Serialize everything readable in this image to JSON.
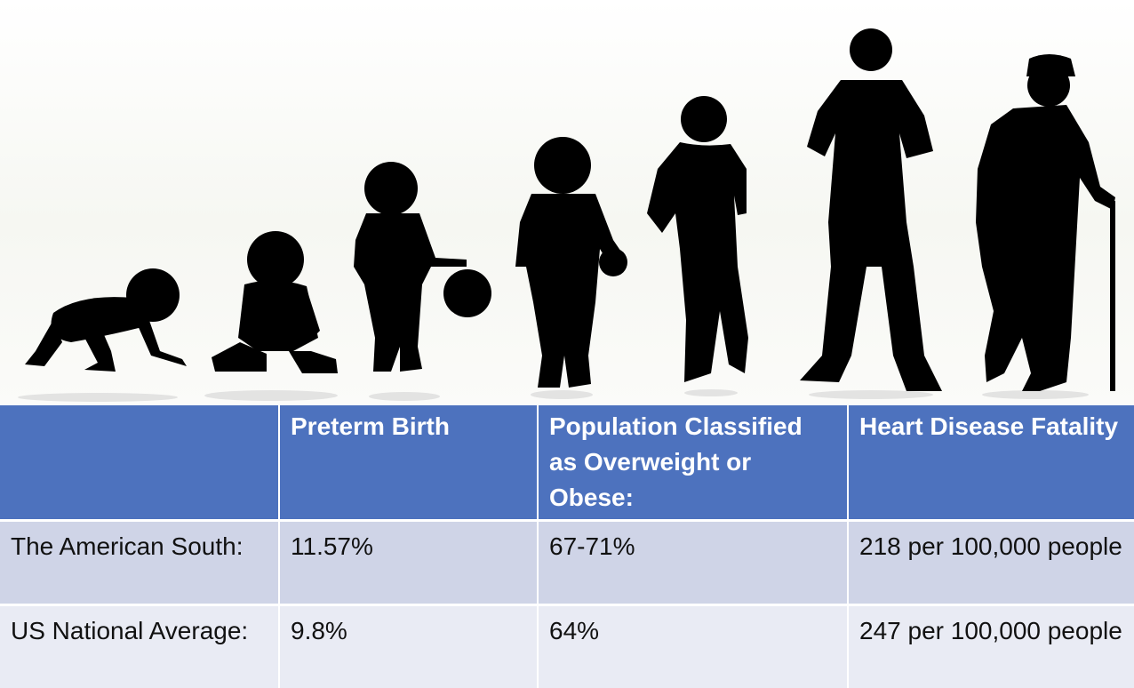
{
  "illustration": {
    "subject": "human-life-stages-silhouettes",
    "figures": [
      "crawling-baby-icon",
      "sitting-baby-icon",
      "toddler-with-ball-icon",
      "child-icon",
      "boy-icon",
      "adult-man-icon",
      "elderly-man-with-cane-icon"
    ],
    "silhouette_color": "#000000"
  },
  "table": {
    "header_color": "#4d72be",
    "row_colors": [
      "#cfd4e7",
      "#e9ebf4"
    ],
    "headers": [
      "",
      "Preterm Birth",
      "Population Classified as Overweight or Obese:",
      "Heart Disease Fatality"
    ],
    "rows": [
      [
        "The American South:",
        "11.57%",
        "67-71%",
        "218 per 100,000 people"
      ],
      [
        "US National Average:",
        "9.8%",
        "64%",
        "247 per 100,000 people"
      ]
    ]
  }
}
